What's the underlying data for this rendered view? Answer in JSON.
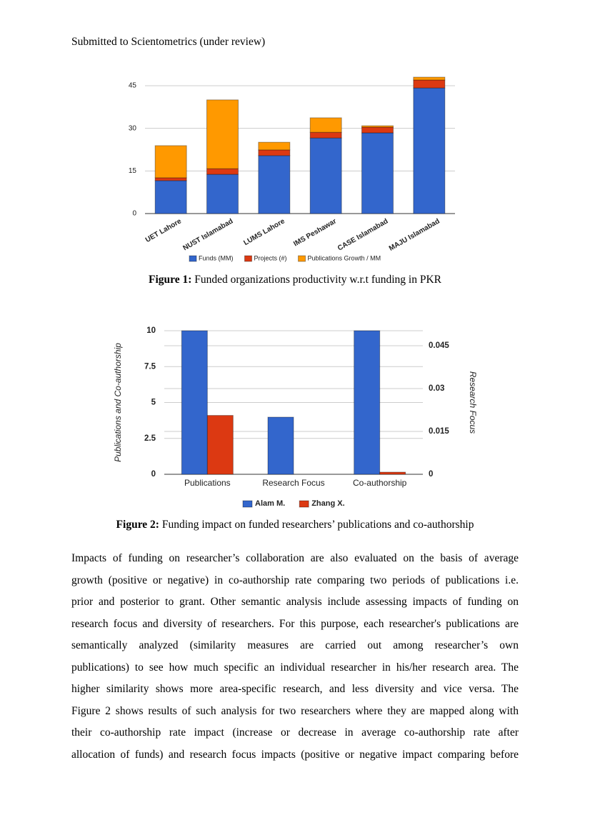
{
  "header": "Submitted to Scientometrics (under review)",
  "chart_data": [
    {
      "type": "bar",
      "stacked": true,
      "categories": [
        "UET Lahore",
        "NUST Islamabad",
        "LUMS Lahore",
        "IMS Peshawar",
        "CASE Islamabad",
        "MAJU Islamabad"
      ],
      "series": [
        {
          "name": "Funds (MM)",
          "color": "#3366cc",
          "values": [
            11.6,
            13.8,
            20.4,
            26.6,
            28.4,
            44.2
          ]
        },
        {
          "name": "Projects (#)",
          "color": "#dc3912",
          "values": [
            1,
            2,
            2,
            2,
            2,
            2.8
          ]
        },
        {
          "name": "Publications Growth / MM",
          "color": "#ff9900",
          "values": [
            11.3,
            24.2,
            2.7,
            5.1,
            0.5,
            1
          ]
        }
      ],
      "ylim": [
        0,
        48
      ],
      "yticks": [
        0,
        15,
        30,
        45
      ],
      "grid": true,
      "legend": "bottom"
    },
    {
      "type": "bar",
      "stacked": false,
      "categories": [
        "Publications",
        "Research Focus",
        "Co-authorship"
      ],
      "category_axes": [
        "y",
        "y2",
        "y"
      ],
      "ylabel": "Publications and Co-authorship",
      "y2label": "Research Focus",
      "series": [
        {
          "name": "Alam M.",
          "color": "#3366cc",
          "values": [
            10,
            0.02,
            10
          ]
        },
        {
          "name": "Zhang X.",
          "color": "#dc3912",
          "values": [
            4.1,
            0,
            0.15
          ]
        }
      ],
      "ylim": [
        0,
        10
      ],
      "yticks": [
        0,
        2.5,
        5,
        7.5,
        10
      ],
      "y2lim": [
        0,
        0.05025
      ],
      "y2ticks": [
        0,
        0.015,
        0.03,
        0.045
      ],
      "grid": true,
      "legend": "bottom"
    }
  ],
  "captions": [
    {
      "label": "Figure 1:",
      "text": "Funded organizations productivity w.r.t funding in PKR"
    },
    {
      "label": "Figure 2:",
      "text": "Funding impact on funded researchers’ publications and co-authorship"
    }
  ],
  "paragraph": {
    "lines": [
      "Impacts of funding on researcher’s collaboration are also evaluated on the basis of average",
      "growth (positive or negative) in co-authorship rate comparing two periods of publications i.e.",
      "prior and posterior to grant. Other semantic analysis include assessing impacts of funding on",
      "research focus and diversity of researchers. For this purpose, each researcher's publications are",
      "semantically analyzed (similarity measures are carried out among researcher’s own",
      "publications) to see how much specific an individual researcher in his/her research area. The",
      "higher similarity shows more area-specific research, and less diversity and vice versa. The",
      "Figure 2 shows results of such analysis for two researchers where they are mapped along with",
      "their co-authorship rate impact (increase or decrease in average co-authorship rate after",
      "allocation of funds) and research focus impacts (positive or negative impact comparing before"
    ]
  }
}
